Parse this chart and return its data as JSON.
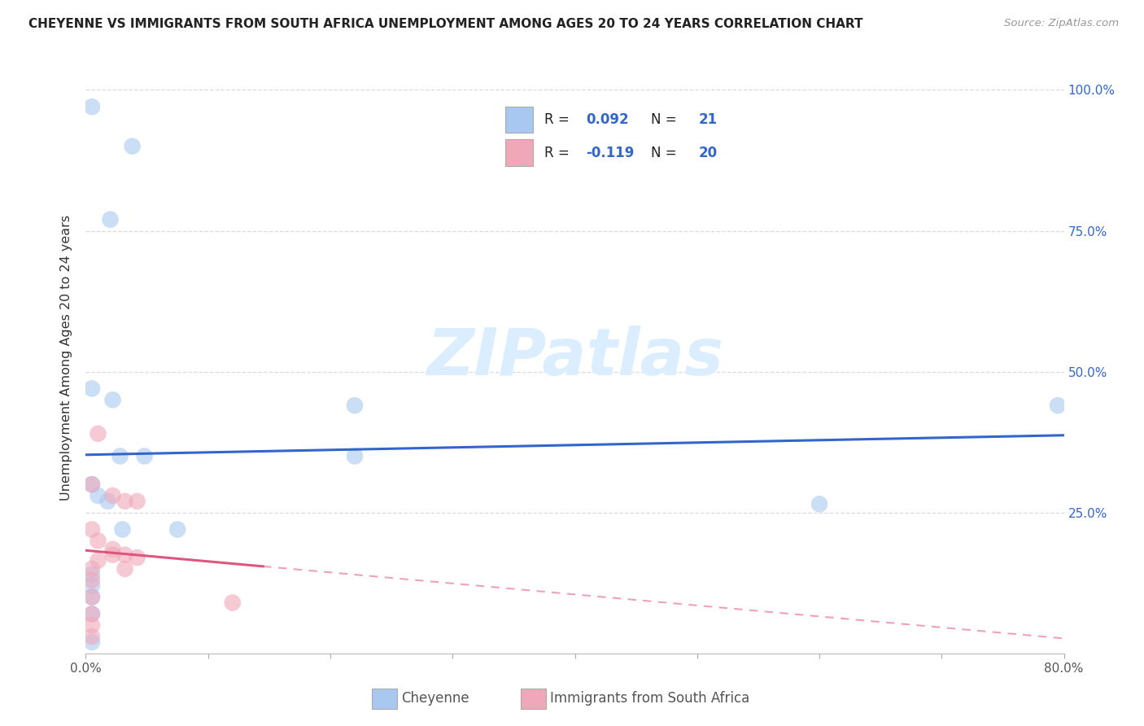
{
  "title": "CHEYENNE VS IMMIGRANTS FROM SOUTH AFRICA UNEMPLOYMENT AMONG AGES 20 TO 24 YEARS CORRELATION CHART",
  "source": "Source: ZipAtlas.com",
  "ylabel": "Unemployment Among Ages 20 to 24 years",
  "xlim": [
    0.0,
    0.8
  ],
  "ylim": [
    0.0,
    1.05
  ],
  "xticks": [
    0.0,
    0.1,
    0.2,
    0.3,
    0.4,
    0.5,
    0.6,
    0.7,
    0.8
  ],
  "xticklabels": [
    "0.0%",
    "",
    "",
    "",
    "",
    "",
    "",
    "",
    "80.0%"
  ],
  "yticks": [
    0.0,
    0.25,
    0.5,
    0.75,
    1.0
  ],
  "yticklabels_right": [
    "",
    "25.0%",
    "50.0%",
    "75.0%",
    "100.0%"
  ],
  "cheyenne_x": [
    0.005,
    0.038,
    0.02,
    0.005,
    0.005,
    0.01,
    0.018,
    0.028,
    0.03,
    0.022,
    0.005,
    0.005,
    0.005,
    0.005,
    0.005,
    0.048,
    0.075,
    0.22,
    0.22,
    0.6,
    0.795
  ],
  "cheyenne_y": [
    0.97,
    0.9,
    0.77,
    0.47,
    0.3,
    0.28,
    0.27,
    0.35,
    0.22,
    0.45,
    0.14,
    0.12,
    0.1,
    0.07,
    0.02,
    0.35,
    0.22,
    0.35,
    0.44,
    0.265,
    0.44
  ],
  "immigrants_x": [
    0.01,
    0.005,
    0.022,
    0.032,
    0.042,
    0.005,
    0.01,
    0.022,
    0.032,
    0.042,
    0.01,
    0.022,
    0.032,
    0.005,
    0.005,
    0.005,
    0.005,
    0.005,
    0.005,
    0.12
  ],
  "immigrants_y": [
    0.39,
    0.3,
    0.28,
    0.27,
    0.27,
    0.22,
    0.2,
    0.185,
    0.175,
    0.17,
    0.165,
    0.175,
    0.15,
    0.15,
    0.13,
    0.1,
    0.07,
    0.05,
    0.03,
    0.09
  ],
  "cheyenne_color": "#a8c8f0",
  "immigrants_color": "#f0a8b8",
  "cheyenne_line_color": "#3366cc",
  "immigrants_line_color": "#e05580",
  "cheyenne_R": 0.092,
  "cheyenne_N": 21,
  "immigrants_R": -0.119,
  "immigrants_N": 20,
  "scatter_size": 220,
  "scatter_alpha": 0.6,
  "background_color": "#ffffff",
  "grid_color": "#cccccc",
  "watermark_color": "#daeeff"
}
